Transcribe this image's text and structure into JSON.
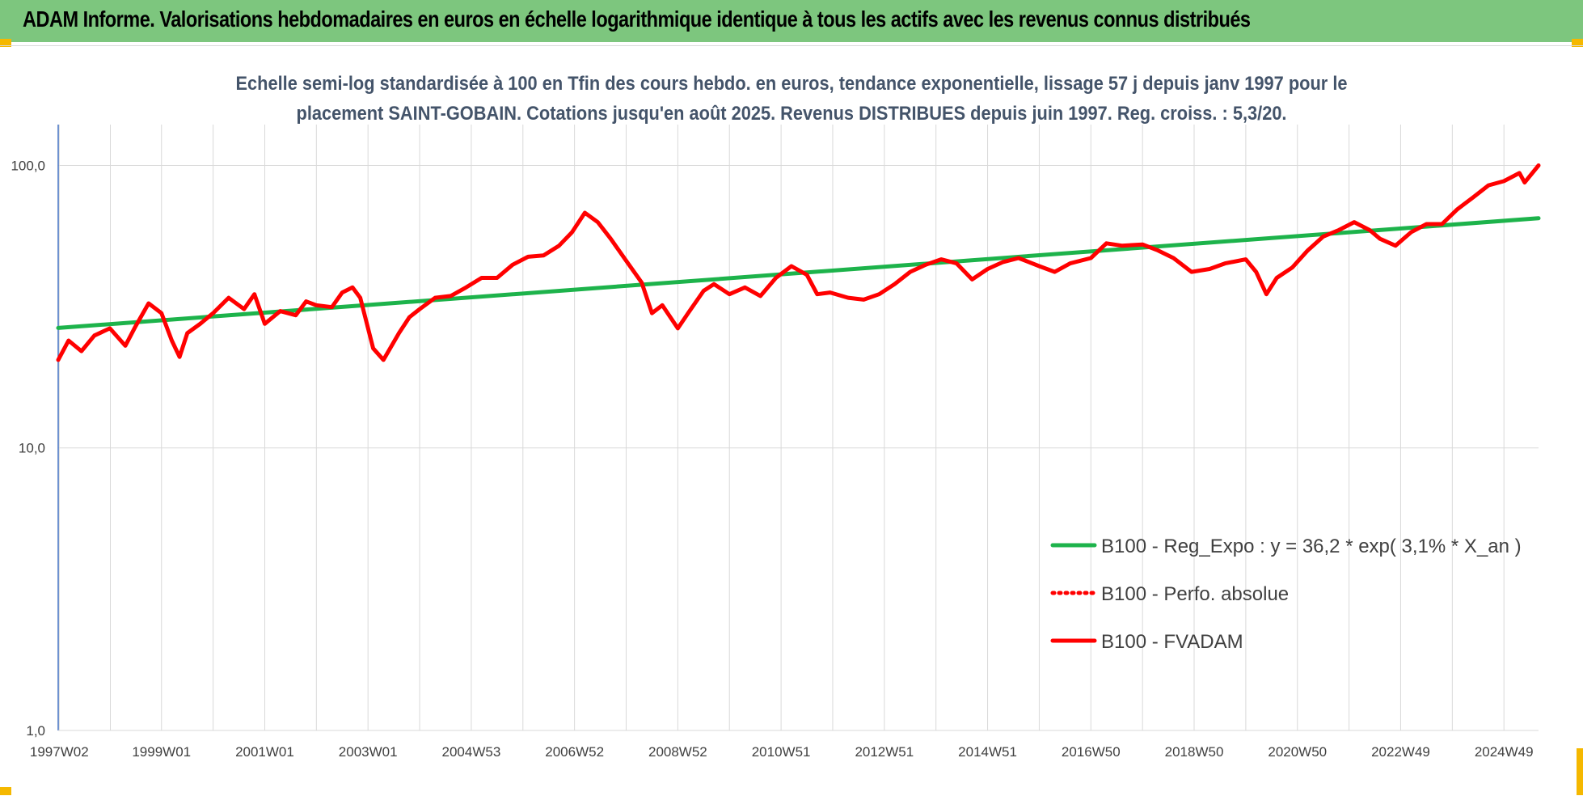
{
  "banner": {
    "title": "ADAM Informe. Valorisations hebdomadaires en euros en échelle logarithmique identique à tous les actifs avec les revenus connus distribués",
    "background": "#7dc67e",
    "accent": "#f5b800"
  },
  "chart_data": {
    "type": "line",
    "subtitle_lines": [
      "Echelle semi-log standardisée à 100 en Tfin des cours hebdo. en euros, tendance exponentielle, lissage 57 j depuis janv 1997 pour le",
      "placement SAINT-GOBAIN. Cotations jusqu'en août 2025. Revenus DISTRIBUES depuis juin 1997. Reg. croiss. : 5,3/20."
    ],
    "y_scale": "log",
    "ylim": [
      1,
      170
    ],
    "y_ticks": [
      {
        "value": 1,
        "label": "1,0"
      },
      {
        "value": 10,
        "label": "10,0"
      },
      {
        "value": 100,
        "label": "100,0"
      }
    ],
    "xlim": [
      1997.0,
      2025.67
    ],
    "x_ticks": [
      {
        "value": 1997.02,
        "label": "1997W02"
      },
      {
        "value": 1999.0,
        "label": "1999W01"
      },
      {
        "value": 2001.0,
        "label": "2001W01"
      },
      {
        "value": 2003.0,
        "label": "2003W01"
      },
      {
        "value": 2005.0,
        "label": "2004W53"
      },
      {
        "value": 2007.0,
        "label": "2006W52"
      },
      {
        "value": 2009.0,
        "label": "2008W52"
      },
      {
        "value": 2011.0,
        "label": "2010W51"
      },
      {
        "value": 2013.0,
        "label": "2012W51"
      },
      {
        "value": 2015.0,
        "label": "2014W51"
      },
      {
        "value": 2017.0,
        "label": "2016W50"
      },
      {
        "value": 2019.0,
        "label": "2018W50"
      },
      {
        "value": 2021.0,
        "label": "2020W50"
      },
      {
        "value": 2023.0,
        "label": "2022W49"
      },
      {
        "value": 2025.0,
        "label": "2024W49"
      }
    ],
    "grid": "vertical and horizontal",
    "legend_position": "bottom-right",
    "series": [
      {
        "name": "B100 - Reg_Expo : y = 36,2 * exp( 3,1% *  X_an )",
        "color": "#1db34b",
        "style": "solid",
        "x": [
          1997.0,
          2025.67
        ],
        "y": [
          26.6,
          65.0
        ]
      },
      {
        "name": "B100 - Perfo. absolue",
        "color": "#ff0000",
        "style": "dotted",
        "x": [],
        "y": []
      },
      {
        "name": "B100 - FVADAM",
        "color": "#ff0000",
        "style": "solid",
        "x": [
          1997.0,
          1997.2,
          1997.45,
          1997.7,
          1998.0,
          1998.3,
          1998.5,
          1998.75,
          1999.0,
          1999.2,
          1999.35,
          1999.5,
          1999.75,
          2000.0,
          2000.3,
          2000.6,
          2000.8,
          2001.0,
          2001.3,
          2001.6,
          2001.8,
          2002.0,
          2002.3,
          2002.5,
          2002.7,
          2002.85,
          2003.1,
          2003.3,
          2003.6,
          2003.8,
          2004.0,
          2004.3,
          2004.6,
          2004.9,
          2005.2,
          2005.5,
          2005.8,
          2006.1,
          2006.4,
          2006.7,
          2006.95,
          2007.2,
          2007.45,
          2007.7,
          2008.0,
          2008.3,
          2008.5,
          2008.7,
          2009.0,
          2009.2,
          2009.5,
          2009.7,
          2010.0,
          2010.3,
          2010.6,
          2010.9,
          2011.2,
          2011.5,
          2011.7,
          2011.95,
          2012.3,
          2012.6,
          2012.9,
          2013.2,
          2013.5,
          2013.8,
          2014.1,
          2014.4,
          2014.7,
          2015.0,
          2015.3,
          2015.6,
          2016.0,
          2016.3,
          2016.6,
          2017.0,
          2017.3,
          2017.6,
          2018.0,
          2018.3,
          2018.6,
          2018.95,
          2019.3,
          2019.6,
          2020.0,
          2020.2,
          2020.4,
          2020.6,
          2020.9,
          2021.2,
          2021.5,
          2021.8,
          2022.1,
          2022.4,
          2022.6,
          2022.9,
          2023.2,
          2023.5,
          2023.8,
          2024.1,
          2024.4,
          2024.7,
          2025.0,
          2025.3,
          2025.4,
          2025.67
        ],
        "y": [
          20.5,
          24.0,
          22.0,
          25.0,
          26.5,
          23.0,
          27.0,
          32.5,
          30.0,
          24.0,
          21.0,
          25.5,
          27.5,
          30.0,
          34.0,
          31.0,
          35.0,
          27.5,
          30.5,
          29.5,
          33.0,
          32.0,
          31.5,
          35.5,
          37.0,
          34.0,
          22.5,
          20.5,
          25.5,
          29.0,
          31.0,
          34.0,
          34.5,
          37.0,
          40.0,
          40.0,
          44.5,
          47.5,
          48.0,
          52.0,
          58.0,
          68.0,
          63.0,
          55.0,
          46.0,
          38.5,
          30.0,
          32.0,
          26.5,
          30.0,
          36.0,
          38.0,
          35.0,
          37.0,
          34.5,
          40.0,
          44.0,
          41.0,
          35.0,
          35.5,
          34.0,
          33.5,
          35.0,
          38.0,
          42.0,
          44.5,
          46.5,
          45.0,
          39.5,
          43.0,
          45.5,
          47.0,
          44.0,
          42.0,
          45.0,
          47.0,
          53.0,
          52.0,
          52.5,
          50.0,
          47.0,
          42.0,
          43.0,
          45.0,
          46.5,
          42.0,
          35.0,
          40.0,
          43.5,
          50.0,
          56.0,
          59.0,
          63.0,
          59.0,
          55.0,
          52.0,
          58.0,
          62.0,
          62.0,
          70.0,
          77.0,
          85.0,
          88.0,
          94.0,
          87.0,
          100.0
        ]
      }
    ]
  }
}
